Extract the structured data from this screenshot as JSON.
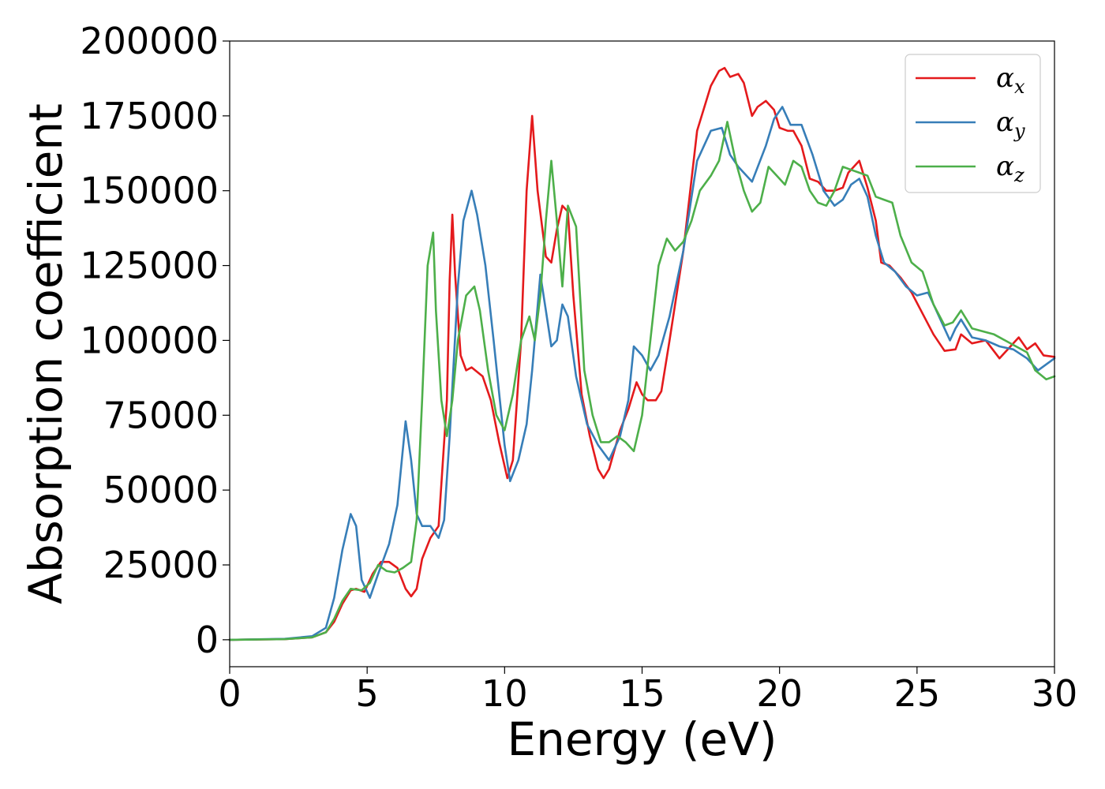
{
  "chart_data": {
    "type": "line",
    "xlabel": "Energy (eV)",
    "ylabel": "Absorption coefficient",
    "xlim": [
      0,
      30
    ],
    "ylim": [
      -9000,
      200000
    ],
    "x_ticks": [
      0,
      5,
      10,
      15,
      20,
      25,
      30
    ],
    "y_ticks": [
      0,
      25000,
      50000,
      75000,
      100000,
      125000,
      150000,
      175000,
      200000
    ],
    "grid": false,
    "legend_position": "top-right",
    "series": [
      {
        "name": "α_x",
        "symbol": "α",
        "subscript": "x",
        "color": "#e41a1c",
        "x": [
          0,
          2,
          3,
          3.5,
          3.8,
          4.1,
          4.4,
          4.6,
          4.9,
          5.2,
          5.5,
          5.8,
          6.1,
          6.4,
          6.6,
          6.8,
          7.0,
          7.3,
          7.6,
          7.9,
          8.0,
          8.1,
          8.2,
          8.4,
          8.6,
          8.8,
          9.2,
          9.5,
          9.8,
          10.1,
          10.3,
          10.6,
          10.8,
          11.0,
          11.2,
          11.5,
          11.7,
          11.9,
          12.1,
          12.3,
          12.5,
          12.8,
          13.1,
          13.4,
          13.6,
          13.8,
          14.2,
          14.5,
          14.8,
          15.0,
          15.2,
          15.5,
          15.7,
          16.0,
          16.5,
          17.0,
          17.5,
          17.8,
          18.0,
          18.2,
          18.5,
          18.7,
          19.0,
          19.2,
          19.5,
          19.8,
          20.0,
          20.3,
          20.5,
          20.8,
          21.1,
          21.4,
          21.7,
          22.0,
          22.3,
          22.5,
          22.9,
          23.2,
          23.5,
          23.7,
          24.0,
          24.4,
          24.8,
          25.2,
          25.6,
          26.0,
          26.4,
          26.6,
          27.0,
          27.5,
          28.0,
          28.4,
          28.7,
          29.0,
          29.3,
          29.6,
          30.0
        ],
        "values": [
          0,
          200,
          800,
          2500,
          6000,
          12000,
          16500,
          17000,
          16000,
          22000,
          26000,
          26000,
          24000,
          17000,
          14500,
          17000,
          27000,
          34000,
          38000,
          80000,
          120000,
          142000,
          122000,
          95000,
          90000,
          91000,
          88000,
          80000,
          66000,
          54000,
          60000,
          100000,
          150000,
          175000,
          150000,
          128000,
          126000,
          137000,
          145000,
          143000,
          115000,
          82000,
          68000,
          57000,
          54000,
          57000,
          70000,
          77000,
          86000,
          82000,
          80000,
          80000,
          83000,
          100000,
          130000,
          170000,
          185000,
          190000,
          191000,
          188000,
          189000,
          186000,
          175000,
          178000,
          180000,
          177000,
          171000,
          170000,
          170000,
          165000,
          154000,
          153000,
          150000,
          150000,
          151000,
          156000,
          160000,
          151000,
          140000,
          126000,
          125000,
          121000,
          116000,
          109000,
          102000,
          96500,
          97000,
          102000,
          99000,
          100000,
          94000,
          98000,
          101000,
          97000,
          99000,
          95000,
          94500
        ]
      },
      {
        "name": "α_y",
        "symbol": "α",
        "subscript": "y",
        "color": "#377eb8",
        "x": [
          0,
          2,
          3,
          3.5,
          3.8,
          4.1,
          4.4,
          4.6,
          4.8,
          5.1,
          5.4,
          5.8,
          6.1,
          6.4,
          6.6,
          6.8,
          7.0,
          7.3,
          7.6,
          7.8,
          8.0,
          8.3,
          8.5,
          8.8,
          9.0,
          9.3,
          9.6,
          10.0,
          10.2,
          10.5,
          10.8,
          11.0,
          11.3,
          11.5,
          11.7,
          11.9,
          12.1,
          12.3,
          12.6,
          13.0,
          13.4,
          13.8,
          14.2,
          14.5,
          14.7,
          15.0,
          15.3,
          15.6,
          16.0,
          16.5,
          17.0,
          17.5,
          17.9,
          18.2,
          18.5,
          19.0,
          19.5,
          19.8,
          20.1,
          20.4,
          20.8,
          21.2,
          21.6,
          22.0,
          22.3,
          22.6,
          22.9,
          23.2,
          23.5,
          23.8,
          24.2,
          24.6,
          25.0,
          25.4,
          25.8,
          26.2,
          26.4,
          26.6,
          27.0,
          27.5,
          28.0,
          28.5,
          29.0,
          29.4,
          30.0
        ],
        "values": [
          0,
          300,
          1200,
          4000,
          14000,
          30000,
          42000,
          38000,
          20000,
          14000,
          22000,
          32000,
          45000,
          73000,
          60000,
          42000,
          38000,
          38000,
          34000,
          40000,
          68000,
          118000,
          140000,
          150000,
          142000,
          125000,
          100000,
          65000,
          53000,
          60000,
          72000,
          90000,
          122000,
          110000,
          98000,
          100000,
          112000,
          108000,
          88000,
          72000,
          65000,
          60000,
          68000,
          80000,
          98000,
          95000,
          90000,
          95000,
          108000,
          130000,
          160000,
          170000,
          171000,
          162000,
          158000,
          153000,
          165000,
          174000,
          178000,
          172000,
          172000,
          162000,
          150000,
          145000,
          147000,
          152000,
          154000,
          148000,
          135000,
          126000,
          123000,
          118000,
          115000,
          116000,
          108000,
          100000,
          104000,
          107000,
          101000,
          100000,
          98000,
          97000,
          94000,
          90000,
          94000
        ]
      },
      {
        "name": "α_z",
        "symbol": "α",
        "subscript": "z",
        "color": "#4daf4a",
        "x": [
          0,
          2,
          3,
          3.5,
          3.8,
          4.1,
          4.4,
          4.8,
          5.1,
          5.4,
          5.7,
          6.0,
          6.3,
          6.6,
          6.8,
          7.0,
          7.2,
          7.4,
          7.5,
          7.7,
          7.9,
          8.1,
          8.3,
          8.6,
          8.9,
          9.1,
          9.4,
          9.7,
          10.0,
          10.3,
          10.6,
          10.9,
          11.1,
          11.3,
          11.5,
          11.7,
          11.9,
          12.1,
          12.3,
          12.6,
          12.9,
          13.2,
          13.5,
          13.8,
          14.1,
          14.4,
          14.7,
          15.0,
          15.3,
          15.6,
          15.9,
          16.2,
          16.5,
          16.8,
          17.1,
          17.5,
          17.8,
          18.1,
          18.4,
          18.7,
          19.0,
          19.3,
          19.6,
          19.9,
          20.2,
          20.5,
          20.8,
          21.1,
          21.4,
          21.7,
          22.0,
          22.3,
          22.6,
          22.9,
          23.2,
          23.5,
          23.8,
          24.1,
          24.4,
          24.8,
          25.2,
          25.6,
          26.0,
          26.3,
          26.6,
          27.0,
          27.4,
          27.8,
          28.2,
          28.6,
          29.0,
          29.3,
          29.7,
          30.0
        ],
        "values": [
          0,
          200,
          800,
          2500,
          7000,
          13000,
          17000,
          16500,
          19000,
          25000,
          23000,
          22500,
          24000,
          26000,
          40000,
          80000,
          125000,
          136000,
          110000,
          80000,
          68000,
          80000,
          100000,
          115000,
          118000,
          110000,
          90000,
          75000,
          70000,
          82000,
          100000,
          108000,
          100000,
          115000,
          140000,
          160000,
          140000,
          118000,
          145000,
          138000,
          90000,
          75000,
          66000,
          66000,
          68000,
          66000,
          63000,
          75000,
          100000,
          125000,
          134000,
          130000,
          133000,
          140000,
          150000,
          155000,
          160000,
          173000,
          160000,
          150000,
          143000,
          146000,
          158000,
          155000,
          152000,
          160000,
          158000,
          150000,
          146000,
          145000,
          150000,
          158000,
          157000,
          156000,
          155000,
          148000,
          147000,
          146000,
          135000,
          126000,
          123000,
          112000,
          105000,
          106000,
          110000,
          104000,
          103000,
          102000,
          100000,
          98000,
          96000,
          90000,
          87000,
          88000
        ]
      }
    ]
  }
}
